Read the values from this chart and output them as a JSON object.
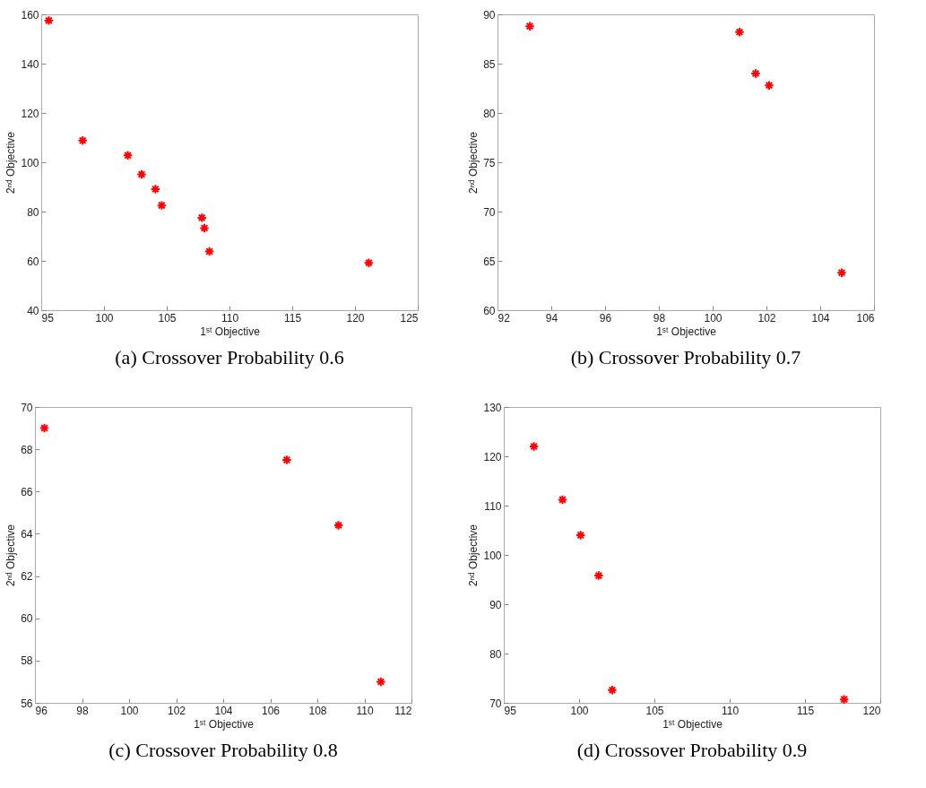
{
  "chart_data": [
    {
      "type": "scatter",
      "title": "(a)  Crossover Probability 0.6",
      "xlabel": "1ˢᵗ Objective",
      "ylabel": "2ⁿᵈ Objective",
      "marker": "cross",
      "xlim": [
        95,
        125
      ],
      "xticks": [
        95,
        100,
        105,
        110,
        115,
        120,
        125
      ],
      "ylim": [
        40,
        160
      ],
      "yticks": [
        40,
        60,
        80,
        100,
        120,
        140,
        160
      ],
      "series": [
        {
          "color": "#ff0000",
          "x": [
            95.6,
            98.3,
            101.9,
            103.0,
            104.1,
            104.6,
            107.8,
            108.0,
            108.4,
            121.1
          ],
          "values": [
            157.5,
            108.8,
            102.8,
            95.1,
            89.1,
            82.5,
            77.5,
            73.3,
            63.8,
            59.2
          ]
        }
      ]
    },
    {
      "type": "scatter",
      "title": "(b) Crossover Probability 0.7",
      "xlabel": "1ˢᵗ Objective",
      "ylabel": "2ⁿᵈ Objective",
      "marker": "cross",
      "xlim": [
        92,
        106
      ],
      "xticks": [
        92,
        94,
        96,
        98,
        100,
        102,
        104,
        106
      ],
      "ylim": [
        60,
        90
      ],
      "yticks": [
        60,
        65,
        70,
        75,
        80,
        85,
        90
      ],
      "series": [
        {
          "color": "#ff0000",
          "x": [
            93.2,
            101.0,
            101.6,
            102.1,
            104.8
          ],
          "values": [
            88.8,
            88.2,
            84.0,
            82.8,
            63.8
          ]
        }
      ]
    },
    {
      "type": "scatter",
      "title": "(c)  Crossover Probability 0.8",
      "xlabel": "1ˢᵗ Objective",
      "ylabel": "2ⁿᵈ Objective",
      "marker": "cross",
      "xlim": [
        96,
        112
      ],
      "xticks": [
        96,
        98,
        100,
        102,
        104,
        106,
        108,
        110,
        112
      ],
      "ylim": [
        56,
        70
      ],
      "yticks": [
        56,
        58,
        60,
        62,
        64,
        66,
        68,
        70
      ],
      "series": [
        {
          "color": "#ff0000",
          "x": [
            96.4,
            106.7,
            108.9,
            110.7
          ],
          "values": [
            69.0,
            67.5,
            64.4,
            57.0
          ]
        }
      ]
    },
    {
      "type": "scatter",
      "title": "(d) Crossover Probability 0.9",
      "xlabel": "1ˢᵗ Objective",
      "ylabel": "2ⁿᵈ Objective",
      "marker": "cross",
      "xlim": [
        95,
        120
      ],
      "xticks": [
        95,
        100,
        105,
        110,
        115,
        120
      ],
      "ylim": [
        70,
        130
      ],
      "yticks": [
        70,
        80,
        90,
        100,
        110,
        120,
        130
      ],
      "series": [
        {
          "color": "#ff0000",
          "x": [
            97.0,
            98.9,
            100.1,
            101.3,
            102.2,
            117.6
          ],
          "values": [
            122.0,
            111.2,
            104.0,
            95.8,
            72.6,
            70.7
          ]
        }
      ]
    }
  ]
}
